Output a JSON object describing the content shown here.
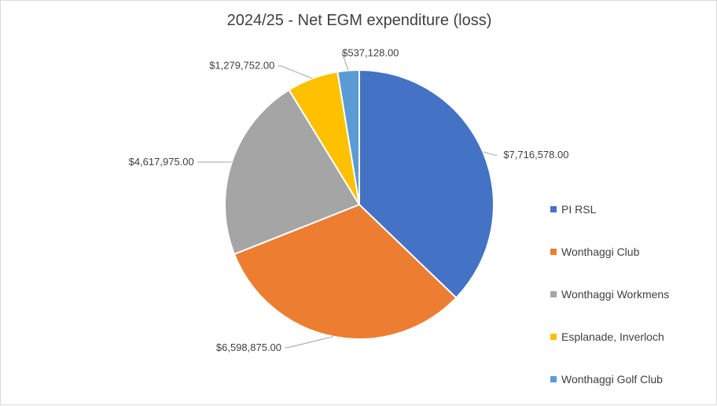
{
  "chart_data": {
    "type": "pie",
    "title": "2024/25 - Net EGM expenditure (loss)",
    "legend_position": "right",
    "slices": [
      {
        "name": "PI RSL",
        "value": 7716578.0,
        "label": "$7,716,578.00",
        "color": "#4472C4"
      },
      {
        "name": "Wonthaggi Club",
        "value": 6598875.0,
        "label": "$6,598,875.00",
        "color": "#ED7D31"
      },
      {
        "name": "Wonthaggi Workmens",
        "value": 4617975.0,
        "label": "$4,617,975.00",
        "color": "#A5A5A5"
      },
      {
        "name": "Esplanade, Inverloch",
        "value": 1279752.0,
        "label": "$1,279,752.00",
        "color": "#FFC000"
      },
      {
        "name": "Wonthaggi Golf Club",
        "value": 537128.0,
        "label": "$537,128.00",
        "color": "#5B9BD5"
      }
    ]
  }
}
